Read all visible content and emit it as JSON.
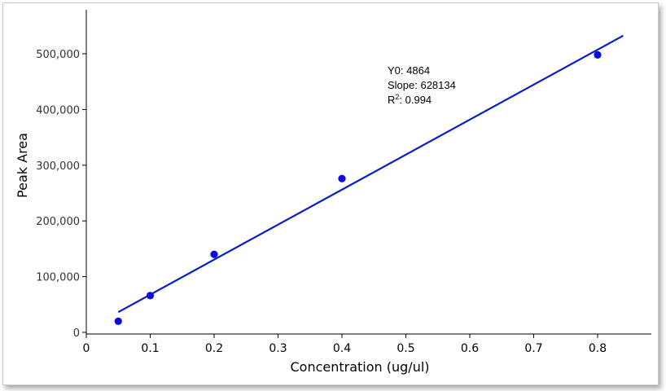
{
  "chart_data": {
    "type": "scatter",
    "title": "",
    "xlabel": "Concentration (ug/ul)",
    "ylabel": "Peak Area",
    "xlim": [
      0,
      0.85
    ],
    "ylim": [
      0,
      540000
    ],
    "x_ticks": [
      "0",
      "0.1",
      "0.2",
      "0.3",
      "0.4",
      "0.5",
      "0.6",
      "0.7",
      "0.8"
    ],
    "y_ticks": [
      "0",
      "100,000",
      "200,000",
      "300,000",
      "400,000",
      "500,000"
    ],
    "x_tick_values": [
      0,
      0.1,
      0.2,
      0.3,
      0.4,
      0.5,
      0.6,
      0.7,
      0.8
    ],
    "y_tick_values": [
      0,
      100000,
      200000,
      300000,
      400000,
      500000
    ],
    "series": [
      {
        "points": [
          {
            "x": 0.05,
            "y": 20000
          },
          {
            "x": 0.1,
            "y": 66000
          },
          {
            "x": 0.2,
            "y": 140000
          },
          {
            "x": 0.4,
            "y": 276000
          },
          {
            "x": 0.8,
            "y": 498000
          }
        ],
        "color": "#0a0adf"
      }
    ],
    "fit_line": {
      "type": "linear",
      "intercept": 4864,
      "slope": 628134,
      "x_range": [
        0.05,
        0.84
      ],
      "color": "#0a1ec8"
    },
    "annotations": {
      "y0_text": "Y0: 4864",
      "slope_text": "Slope: 628134",
      "r2_label": "R",
      "r2_sup": "2",
      "r2_value": ": 0.994"
    }
  }
}
